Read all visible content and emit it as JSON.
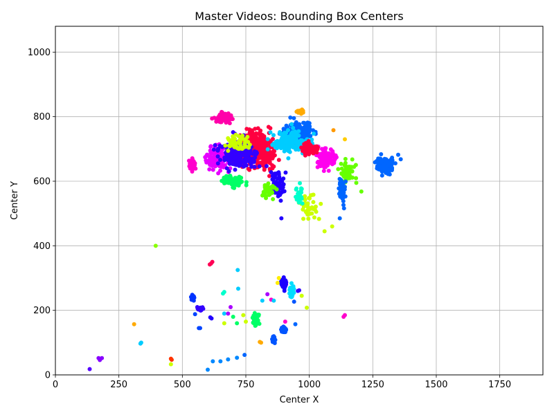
{
  "chart_data": {
    "type": "scatter",
    "title": "Master Videos: Bounding Box Centers",
    "xlabel": "Center X",
    "ylabel": "Center Y",
    "xlim": [
      0,
      1920
    ],
    "ylim": [
      0,
      1080
    ],
    "x_ticks": [
      0,
      250,
      500,
      750,
      1000,
      1250,
      1500,
      1750
    ],
    "y_ticks": [
      0,
      200,
      400,
      600,
      800,
      1000
    ],
    "grid": true,
    "legend": "none",
    "clusters": [
      {
        "color": "#e600ff",
        "cx": 640,
        "cy": 670,
        "sx": 40,
        "sy": 30,
        "n": 120
      },
      {
        "color": "#ff00aa",
        "cx": 660,
        "cy": 795,
        "sx": 35,
        "sy": 12,
        "n": 80
      },
      {
        "color": "#ff0040",
        "cx": 790,
        "cy": 700,
        "sx": 60,
        "sy": 45,
        "n": 400
      },
      {
        "color": "#3300ff",
        "cx": 720,
        "cy": 680,
        "sx": 60,
        "sy": 40,
        "n": 200
      },
      {
        "color": "#0066ff",
        "cx": 960,
        "cy": 750,
        "sx": 50,
        "sy": 30,
        "n": 200
      },
      {
        "color": "#00ccff",
        "cx": 930,
        "cy": 720,
        "sx": 60,
        "sy": 30,
        "n": 150
      },
      {
        "color": "#ccff00",
        "cx": 1000,
        "cy": 520,
        "sx": 30,
        "sy": 30,
        "n": 40
      },
      {
        "color": "#66ff00",
        "cx": 1150,
        "cy": 630,
        "sx": 25,
        "sy": 30,
        "n": 60
      },
      {
        "color": "#0066ff",
        "cx": 1300,
        "cy": 650,
        "sx": 35,
        "sy": 20,
        "n": 100
      },
      {
        "color": "#0066ff",
        "cx": 1130,
        "cy": 570,
        "sx": 15,
        "sy": 35,
        "n": 40
      },
      {
        "color": "#ff00ee",
        "cx": 1070,
        "cy": 670,
        "sx": 30,
        "sy": 25,
        "n": 120
      },
      {
        "color": "#ff0040",
        "cx": 1000,
        "cy": 700,
        "sx": 25,
        "sy": 15,
        "n": 80
      },
      {
        "color": "#00ff66",
        "cx": 700,
        "cy": 600,
        "sx": 40,
        "sy": 15,
        "n": 60
      },
      {
        "color": "#ccff00",
        "cx": 720,
        "cy": 720,
        "sx": 40,
        "sy": 20,
        "n": 60
      },
      {
        "color": "#00ffcc",
        "cx": 960,
        "cy": 560,
        "sx": 10,
        "sy": 30,
        "n": 30
      },
      {
        "color": "#ff00cc",
        "cx": 540,
        "cy": 650,
        "sx": 10,
        "sy": 15,
        "n": 50
      },
      {
        "color": "#2200ff",
        "cx": 880,
        "cy": 590,
        "sx": 20,
        "sy": 40,
        "n": 60
      },
      {
        "color": "#ffaa00",
        "cx": 965,
        "cy": 815,
        "sx": 10,
        "sy": 5,
        "n": 20
      },
      {
        "color": "#66ff00",
        "cx": 840,
        "cy": 570,
        "sx": 20,
        "sy": 20,
        "n": 40
      },
      {
        "color": "#1a00ff",
        "cx": 900,
        "cy": 280,
        "sx": 10,
        "sy": 15,
        "n": 40
      },
      {
        "color": "#0055ff",
        "cx": 900,
        "cy": 140,
        "sx": 8,
        "sy": 6,
        "n": 40
      },
      {
        "color": "#0055ff",
        "cx": 860,
        "cy": 110,
        "sx": 4,
        "sy": 8,
        "n": 40
      },
      {
        "color": "#00ff66",
        "cx": 790,
        "cy": 170,
        "sx": 10,
        "sy": 15,
        "n": 50
      },
      {
        "color": "#00ddff",
        "cx": 930,
        "cy": 260,
        "sx": 8,
        "sy": 20,
        "n": 30
      },
      {
        "color": "#0033ff",
        "cx": 540,
        "cy": 240,
        "sx": 8,
        "sy": 8,
        "n": 20
      },
      {
        "color": "#3300ff",
        "cx": 570,
        "cy": 205,
        "sx": 10,
        "sy": 5,
        "n": 20
      }
    ],
    "points": [
      {
        "x": 395,
        "y": 400,
        "color": "#88ff00"
      },
      {
        "x": 613,
        "y": 345,
        "color": "#ff0055"
      },
      {
        "x": 618,
        "y": 350,
        "color": "#ff0055"
      },
      {
        "x": 608,
        "y": 342,
        "color": "#ff0055"
      },
      {
        "x": 718,
        "y": 325,
        "color": "#00ccff"
      },
      {
        "x": 310,
        "y": 157,
        "color": "#ffaa00"
      },
      {
        "x": 335,
        "y": 97,
        "color": "#00ccff"
      },
      {
        "x": 338,
        "y": 100,
        "color": "#00ccff"
      },
      {
        "x": 455,
        "y": 50,
        "color": "#ff3300"
      },
      {
        "x": 458,
        "y": 47,
        "color": "#ff3300"
      },
      {
        "x": 455,
        "y": 33,
        "color": "#ccff00"
      },
      {
        "x": 170,
        "y": 52,
        "color": "#8800ff"
      },
      {
        "x": 175,
        "y": 46,
        "color": "#8800ff"
      },
      {
        "x": 183,
        "y": 52,
        "color": "#8800ff"
      },
      {
        "x": 135,
        "y": 18,
        "color": "#5500ff"
      },
      {
        "x": 600,
        "y": 16,
        "color": "#0088ff"
      },
      {
        "x": 620,
        "y": 42,
        "color": "#0088ff"
      },
      {
        "x": 650,
        "y": 42,
        "color": "#0088ff"
      },
      {
        "x": 680,
        "y": 48,
        "color": "#0088ff"
      },
      {
        "x": 715,
        "y": 53,
        "color": "#0088ff"
      },
      {
        "x": 745,
        "y": 62,
        "color": "#0066ff"
      },
      {
        "x": 810,
        "y": 100,
        "color": "#ffaa00"
      },
      {
        "x": 805,
        "y": 102,
        "color": "#ffaa00"
      },
      {
        "x": 1140,
        "y": 185,
        "color": "#ff00cc"
      },
      {
        "x": 1135,
        "y": 180,
        "color": "#ff00cc"
      },
      {
        "x": 945,
        "y": 157,
        "color": "#0066ff"
      },
      {
        "x": 940,
        "y": 227,
        "color": "#0055ff"
      },
      {
        "x": 960,
        "y": 262,
        "color": "#3300ff"
      },
      {
        "x": 955,
        "y": 260,
        "color": "#3300ff"
      },
      {
        "x": 905,
        "y": 165,
        "color": "#ff00cc"
      },
      {
        "x": 835,
        "y": 250,
        "color": "#aa00ff"
      },
      {
        "x": 815,
        "y": 230,
        "color": "#00ccff"
      },
      {
        "x": 850,
        "y": 233,
        "color": "#ff00cc"
      },
      {
        "x": 860,
        "y": 230,
        "color": "#00ccff"
      },
      {
        "x": 690,
        "y": 210,
        "color": "#aa00ff"
      },
      {
        "x": 665,
        "y": 190,
        "color": "#00ccff"
      },
      {
        "x": 700,
        "y": 180,
        "color": "#00ff66"
      },
      {
        "x": 740,
        "y": 185,
        "color": "#ccff00"
      },
      {
        "x": 750,
        "y": 165,
        "color": "#ccff00"
      },
      {
        "x": 715,
        "y": 160,
        "color": "#00ff66"
      },
      {
        "x": 665,
        "y": 160,
        "color": "#ccff00"
      },
      {
        "x": 680,
        "y": 190,
        "color": "#aa00ff"
      },
      {
        "x": 720,
        "y": 267,
        "color": "#00ccff"
      },
      {
        "x": 665,
        "y": 257,
        "color": "#00ffcc"
      },
      {
        "x": 660,
        "y": 252,
        "color": "#00ffcc"
      },
      {
        "x": 610,
        "y": 178,
        "color": "#2200ff"
      },
      {
        "x": 615,
        "y": 175,
        "color": "#2200ff"
      },
      {
        "x": 550,
        "y": 188,
        "color": "#0044ff"
      },
      {
        "x": 545,
        "y": 230,
        "color": "#0033ff"
      },
      {
        "x": 570,
        "y": 145,
        "color": "#0044ff"
      },
      {
        "x": 565,
        "y": 145,
        "color": "#0044ff"
      },
      {
        "x": 880,
        "y": 300,
        "color": "#ffee00"
      },
      {
        "x": 875,
        "y": 285,
        "color": "#ffee00"
      },
      {
        "x": 970,
        "y": 245,
        "color": "#ccff00"
      },
      {
        "x": 990,
        "y": 208,
        "color": "#ccff00"
      },
      {
        "x": 1095,
        "y": 758,
        "color": "#ff9900"
      },
      {
        "x": 1140,
        "y": 730,
        "color": "#ffcc00"
      },
      {
        "x": 1185,
        "y": 595,
        "color": "#66ff00"
      },
      {
        "x": 1205,
        "y": 568,
        "color": "#66ff00"
      },
      {
        "x": 1360,
        "y": 668,
        "color": "#0066ff"
      },
      {
        "x": 1350,
        "y": 682,
        "color": "#0066ff"
      },
      {
        "x": 1120,
        "y": 485,
        "color": "#0066ff"
      },
      {
        "x": 890,
        "y": 485,
        "color": "#2200ff"
      },
      {
        "x": 1060,
        "y": 445,
        "color": "#ccff00"
      },
      {
        "x": 1090,
        "y": 460,
        "color": "#ccff00"
      }
    ]
  }
}
